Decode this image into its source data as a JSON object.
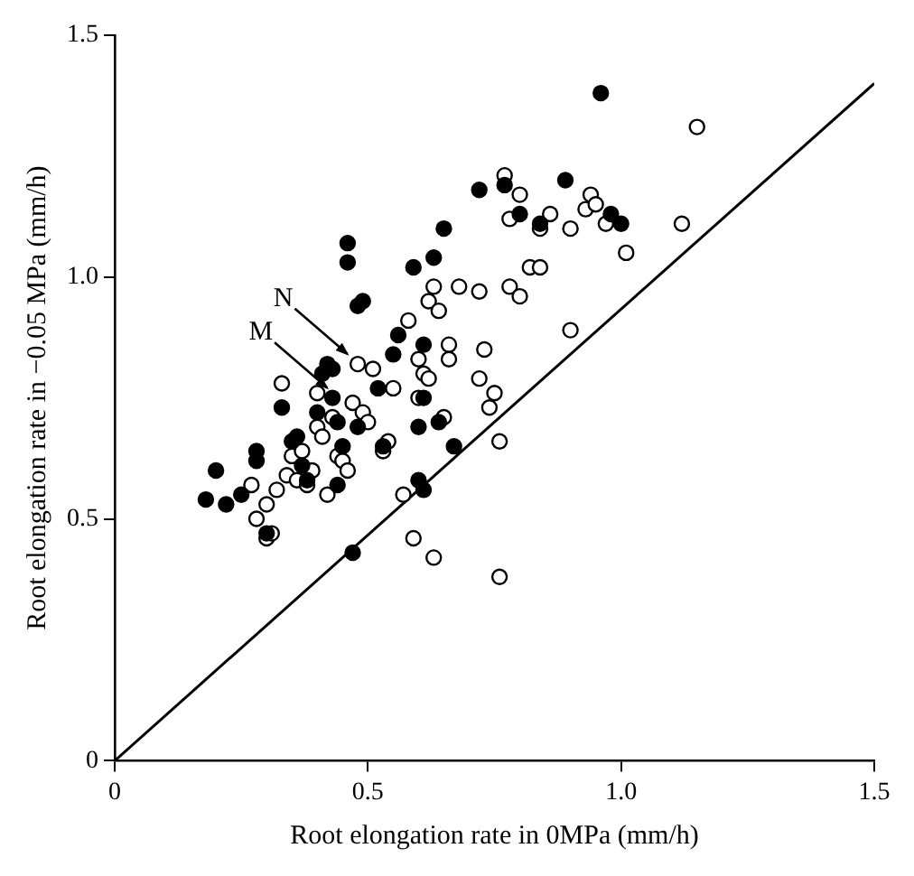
{
  "chart_data": {
    "type": "scatter",
    "xlabel": "Root elongation rate in 0MPa (mm/h)",
    "ylabel": "Root elongation rate in −0.05 MPa (mm/h)",
    "xlim": [
      0,
      1.5
    ],
    "ylim": [
      0,
      1.5
    ],
    "xticks": [
      0,
      0.5,
      {
        "value": 1,
        "label": "1.0"
      },
      1.5
    ],
    "yticks": [
      0,
      0.5,
      {
        "value": 1,
        "label": "1.0"
      },
      1.5
    ],
    "grid": false,
    "legend": false,
    "marker": "circle",
    "annotations": [
      {
        "text": "N",
        "x": 0.47,
        "y": 0.83
      },
      {
        "text": "M",
        "x": 0.43,
        "y": 0.76
      }
    ],
    "series": [
      {
        "color": "#000000",
        "x": [
          0.18,
          0.2,
          0.22,
          0.25,
          0.28,
          0.28,
          0.3,
          0.33,
          0.35,
          0.36,
          0.37,
          0.38,
          0.4,
          0.41,
          0.42,
          0.43,
          0.43,
          0.44,
          0.44,
          0.45,
          0.46,
          0.46,
          0.47,
          0.48,
          0.48,
          0.49,
          0.52,
          0.53,
          0.55,
          0.56,
          0.59,
          0.6,
          0.6,
          0.61,
          0.61,
          0.61,
          0.63,
          0.64,
          0.65,
          0.67,
          0.72,
          0.77,
          0.8,
          0.84,
          0.89,
          0.96,
          0.98,
          1.0
        ],
        "values": [
          0.54,
          0.6,
          0.53,
          0.55,
          0.62,
          0.64,
          0.47,
          0.73,
          0.66,
          0.67,
          0.61,
          0.58,
          0.72,
          0.8,
          0.82,
          0.75,
          0.81,
          0.7,
          0.57,
          0.65,
          1.07,
          1.03,
          0.43,
          0.69,
          0.94,
          0.95,
          0.77,
          0.65,
          0.84,
          0.88,
          1.02,
          0.58,
          0.69,
          0.56,
          0.75,
          0.86,
          1.04,
          0.7,
          1.1,
          0.65,
          1.18,
          1.19,
          1.13,
          1.11,
          1.2,
          1.38,
          1.13,
          1.11
        ]
      },
      {
        "color": "#ffffff",
        "x": [
          0.27,
          0.28,
          0.3,
          0.31,
          0.3,
          0.32,
          0.33,
          0.34,
          0.35,
          0.36,
          0.37,
          0.38,
          0.39,
          0.4,
          0.4,
          0.41,
          0.42,
          0.43,
          0.44,
          0.45,
          0.46,
          0.47,
          0.48,
          0.49,
          0.5,
          0.51,
          0.53,
          0.54,
          0.55,
          0.57,
          0.58,
          0.59,
          0.6,
          0.6,
          0.61,
          0.62,
          0.62,
          0.63,
          0.63,
          0.64,
          0.65,
          0.66,
          0.66,
          0.68,
          0.72,
          0.72,
          0.73,
          0.74,
          0.75,
          0.76,
          0.76,
          0.77,
          0.78,
          0.78,
          0.8,
          0.8,
          0.82,
          0.84,
          0.84,
          0.86,
          0.9,
          0.9,
          0.93,
          0.94,
          0.95,
          0.97,
          1.01,
          1.12,
          1.15
        ],
        "values": [
          0.57,
          0.5,
          0.46,
          0.47,
          0.53,
          0.56,
          0.78,
          0.59,
          0.63,
          0.58,
          0.64,
          0.57,
          0.6,
          0.76,
          0.69,
          0.67,
          0.55,
          0.71,
          0.63,
          0.62,
          0.6,
          0.74,
          0.82,
          0.72,
          0.7,
          0.81,
          0.64,
          0.66,
          0.77,
          0.55,
          0.91,
          0.46,
          0.83,
          0.75,
          0.8,
          0.79,
          0.95,
          0.42,
          0.98,
          0.93,
          0.71,
          0.86,
          0.83,
          0.98,
          0.79,
          0.97,
          0.85,
          0.73,
          0.76,
          0.38,
          0.66,
          1.21,
          1.12,
          0.98,
          0.96,
          1.17,
          1.02,
          1.02,
          1.1,
          1.13,
          0.89,
          1.1,
          1.14,
          1.17,
          1.15,
          1.11,
          1.05,
          1.11,
          1.31
        ]
      },
      {
        "type": "line",
        "color": "#000000",
        "x": [
          0,
          1.5
        ],
        "values": [
          0,
          1.4
        ],
        "marker": "none"
      }
    ]
  }
}
